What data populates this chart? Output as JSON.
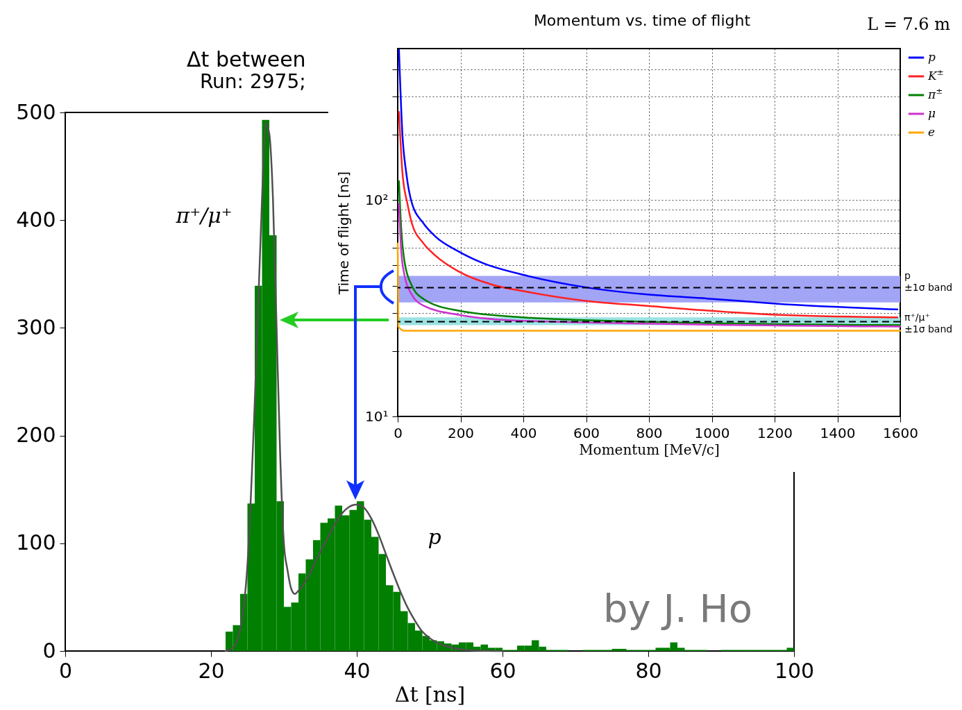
{
  "chart_data": [
    {
      "type": "histogram",
      "title": "Δt between",
      "subtitle": "Run: 2975;",
      "xlabel": "Δt [ns]",
      "xlim": [
        0,
        100
      ],
      "xticks": [
        0,
        20,
        40,
        60,
        80,
        100
      ],
      "ylim": [
        0,
        500
      ],
      "yticks": [
        0,
        100,
        200,
        300,
        400,
        500
      ],
      "grid": false,
      "legend": false,
      "bins": [
        22,
        23,
        24,
        25,
        26,
        27,
        28,
        29,
        30,
        31,
        32,
        33,
        34,
        35,
        36,
        37,
        38,
        39,
        40,
        41,
        42,
        43,
        44,
        45,
        46,
        47,
        48,
        49,
        50,
        51,
        52,
        53,
        54,
        55,
        56,
        57,
        58,
        59,
        60,
        61,
        62,
        63,
        64,
        65,
        66,
        67,
        68,
        69,
        70,
        71,
        72,
        73,
        74,
        75,
        76,
        77,
        78,
        79,
        80,
        81,
        82,
        83,
        84,
        85,
        86,
        87,
        88,
        89,
        90,
        91,
        92,
        93,
        94,
        95,
        96,
        97,
        98,
        99,
        100
      ],
      "series": [
        {
          "type": "histogram",
          "color": "#007f00",
          "values": [
            18,
            24,
            53,
            137,
            339,
            493,
            386,
            139,
            41,
            45,
            72,
            85,
            103,
            119,
            123,
            135,
            126,
            131,
            139,
            122,
            106,
            90,
            61,
            55,
            37,
            26,
            19,
            14,
            10,
            9,
            7,
            6,
            8,
            8,
            4,
            6,
            3,
            3,
            1,
            1,
            5,
            5,
            10,
            4,
            1,
            1,
            1,
            0,
            0,
            1,
            1,
            1,
            1,
            2,
            2,
            1,
            1,
            1,
            1,
            3,
            3,
            8,
            3,
            1,
            1,
            1,
            0,
            0,
            1,
            1,
            1,
            1,
            1,
            1,
            1,
            1,
            1,
            3
          ]
        },
        {
          "type": "line",
          "color": "#505050",
          "x": [
            22,
            23,
            24,
            25,
            26,
            27,
            27.5,
            28,
            28.5,
            29,
            29.5,
            30,
            30.5,
            31,
            31.5,
            32,
            33,
            34,
            35,
            36,
            37,
            38,
            39,
            40,
            41,
            42,
            43,
            44,
            45,
            46,
            47,
            48,
            49,
            50,
            52,
            54,
            56,
            60
          ],
          "values": [
            0,
            3,
            20,
            80,
            230,
            420,
            490,
            480,
            420,
            300,
            180,
            100,
            75,
            58,
            53,
            56,
            65,
            78,
            92,
            105,
            118,
            128,
            134,
            136,
            133,
            123,
            108,
            90,
            72,
            55,
            40,
            28,
            18,
            12,
            5,
            2,
            0.5,
            0
          ]
        }
      ],
      "annotations": [
        "π⁺/μ⁺",
        "p",
        "by J. Ho"
      ]
    },
    {
      "type": "line",
      "title": "Momentum vs. time of flight",
      "xlabel": "Momentum [MeV/c]",
      "ylabel": "Time of flight [ns]",
      "xlim": [
        0,
        1600
      ],
      "xticks": [
        0,
        200,
        400,
        600,
        800,
        1000,
        1200,
        1400,
        1600
      ],
      "ylim": [
        10,
        500
      ],
      "yticks": [
        {
          "value": 10,
          "label": "10¹"
        },
        {
          "value": 20,
          "label": null
        },
        {
          "value": 30,
          "label": null
        },
        {
          "value": 40,
          "label": null
        },
        {
          "value": 50,
          "label": null
        },
        {
          "value": 60,
          "label": null
        },
        {
          "value": 70,
          "label": null
        },
        {
          "value": 80,
          "label": null
        },
        {
          "value": 90,
          "label": null
        },
        {
          "value": 100,
          "label": "10²"
        },
        {
          "value": 200,
          "label": null
        },
        {
          "value": 300,
          "label": null
        },
        {
          "value": 400,
          "label": null
        }
      ],
      "log": true,
      "grid": true,
      "legend": "right",
      "series": [
        {
          "name": "p",
          "color": "#0000ff",
          "x": [
            4,
            15,
            27,
            44,
            82,
            119,
            192,
            265,
            413,
            597,
            782,
            1003,
            1202,
            1591
          ],
          "values": [
            493,
            200,
            134,
            98,
            78,
            68,
            58,
            51.5,
            44.6,
            39.5,
            36.7,
            34.9,
            33.2,
            31.2
          ]
        },
        {
          "name": "K$^{±}$",
          "color": "#ff2020",
          "x": [
            4,
            15,
            31,
            44,
            82,
            119,
            192,
            303,
            413,
            597,
            782,
            1202,
            1591
          ],
          "values": [
            255,
            134,
            96,
            79,
            63,
            55.5,
            46.9,
            40.5,
            37.6,
            34.2,
            32.5,
            29.5,
            28.7
          ]
        },
        {
          "name": "π$^{±}$",
          "color": "#007f00",
          "x": [
            4,
            11,
            22,
            44,
            82,
            192,
            413,
            782,
            1600
          ],
          "values": [
            122,
            74.5,
            51.5,
            40.5,
            34.9,
            30.8,
            28.6,
            27.4,
            26.4
          ]
        },
        {
          "name": "μ",
          "color": "#cc33cc",
          "x": [
            4,
            11,
            22,
            44,
            82,
            192,
            413,
            1600
          ],
          "values": [
            95.7,
            58.5,
            44.6,
            36.7,
            32.5,
            29.5,
            27.6,
            26.0
          ]
        },
        {
          "name": "e",
          "color": "#ffa500",
          "x": [
            0,
            2,
            20,
            1600
          ],
          "values": [
            63,
            26,
            24.9,
            24.9
          ]
        }
      ],
      "bands": [
        {
          "axis": "y",
          "from": 33.6,
          "to": 44.6,
          "label": "p ±1σ band",
          "color": "#9d9ff5"
        },
        {
          "axis": "y",
          "from": 26.4,
          "to": 28.7,
          "label": "π⁺/μ⁺ ±1σ band",
          "color": "#96e0e0"
        }
      ],
      "ref_lines": [
        {
          "axis": "y",
          "value": 39.3,
          "color": "#000000",
          "line_style": "dashed"
        },
        {
          "axis": "y",
          "value": 27.4,
          "color": "#000000",
          "line_style": "dashed"
        }
      ],
      "annotations": [
        "L = 7.6 m"
      ]
    }
  ]
}
